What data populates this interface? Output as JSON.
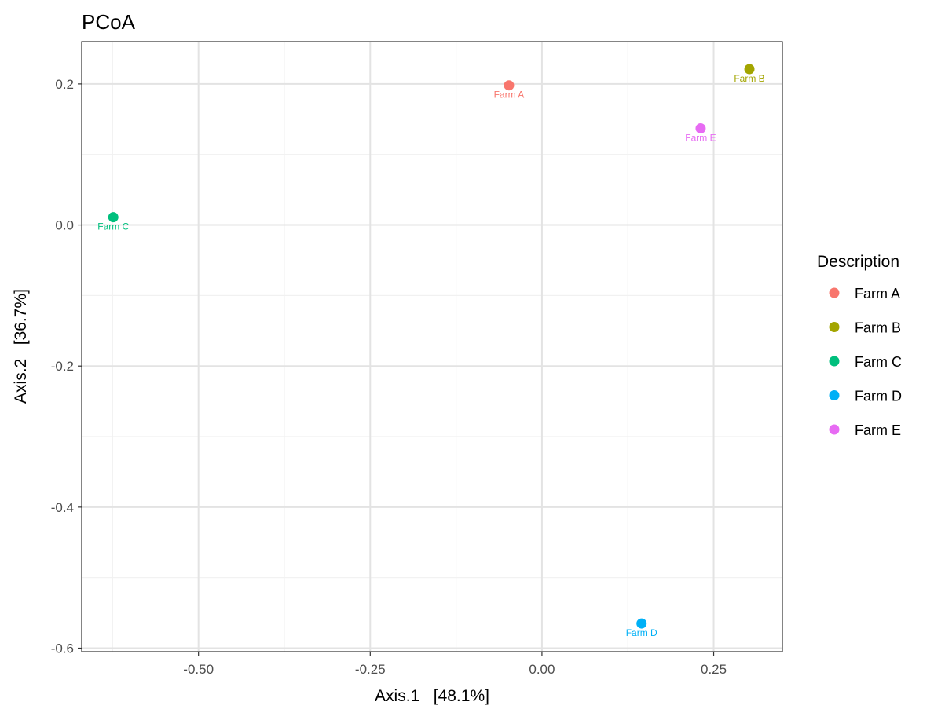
{
  "chart_data": {
    "type": "scatter",
    "title": "PCoA",
    "xlabel": "Axis.1   [48.1%]",
    "ylabel": "Axis.2   [36.7%]",
    "xlim": [
      -0.67,
      0.35
    ],
    "ylim": [
      -0.605,
      0.26
    ],
    "x_ticks": [
      -0.5,
      -0.25,
      0.0,
      0.25
    ],
    "x_tick_labels": [
      "-0.50",
      "-0.25",
      "0.00",
      "0.25"
    ],
    "y_ticks": [
      0.2,
      0.0,
      -0.2,
      -0.4,
      -0.6
    ],
    "y_tick_labels": [
      "0.2",
      "0.0",
      "-0.2",
      "-0.4",
      "-0.6"
    ],
    "grid": true,
    "legend": {
      "title": "Description",
      "position": "right"
    },
    "points": [
      {
        "label": "Farm A",
        "x": -0.048,
        "y": 0.198,
        "color": "#F8766D"
      },
      {
        "label": "Farm B",
        "x": 0.302,
        "y": 0.221,
        "color": "#A3A500"
      },
      {
        "label": "Farm C",
        "x": -0.624,
        "y": 0.011,
        "color": "#00BF7D"
      },
      {
        "label": "Farm D",
        "x": 0.145,
        "y": -0.565,
        "color": "#00B0F6"
      },
      {
        "label": "Farm E",
        "x": 0.231,
        "y": 0.137,
        "color": "#E76BF3"
      }
    ]
  }
}
